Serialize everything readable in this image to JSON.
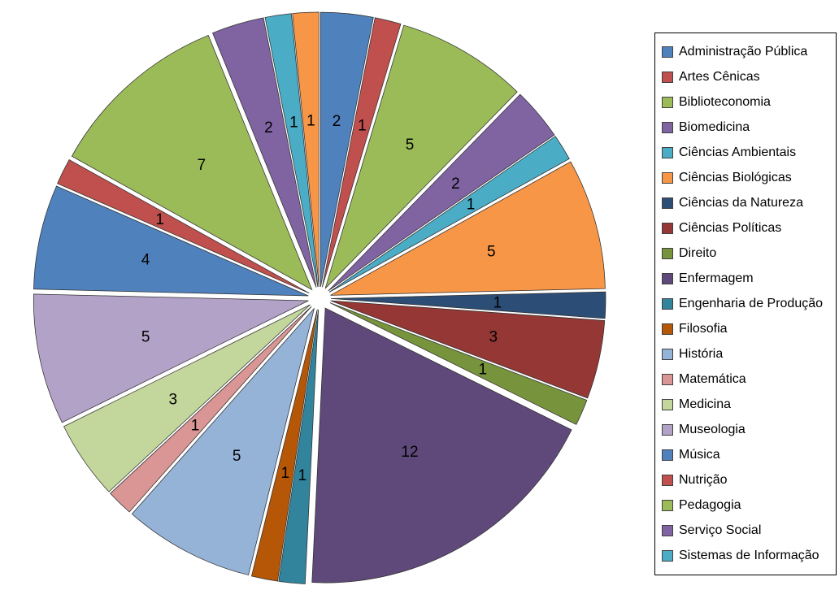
{
  "chart_data": {
    "type": "pie",
    "variant": "exploded",
    "title": "",
    "legend_position": "right",
    "start_angle_deg": 0,
    "direction": "clockwise",
    "total": 65,
    "label_style": "value-inside-slice",
    "slices": [
      {
        "label": "Administração Pública",
        "value": 2,
        "color": "#4F81BD",
        "in_legend": true
      },
      {
        "label": "Artes Cênicas",
        "value": 1,
        "color": "#C0504D",
        "in_legend": true
      },
      {
        "label": "Biblioteconomia",
        "value": 5,
        "color": "#9BBB59",
        "in_legend": true
      },
      {
        "label": "Biomedicina",
        "value": 2,
        "color": "#8064A2",
        "in_legend": true
      },
      {
        "label": "Ciências Ambientais",
        "value": 1,
        "color": "#4BACC6",
        "in_legend": true
      },
      {
        "label": "Ciências Biológicas",
        "value": 5,
        "color": "#F79646",
        "in_legend": true
      },
      {
        "label": "Ciências da Natureza",
        "value": 1,
        "color": "#2C4D75",
        "in_legend": true
      },
      {
        "label": "Ciências Políticas",
        "value": 3,
        "color": "#943735",
        "in_legend": true
      },
      {
        "label": "Direito",
        "value": 1,
        "color": "#77933C",
        "in_legend": true
      },
      {
        "label": "Enfermagem",
        "value": 12,
        "color": "#5F497A",
        "in_legend": true
      },
      {
        "label": "Engenharia de Produção",
        "value": 1,
        "color": "#31849B",
        "in_legend": true
      },
      {
        "label": "Filosofia",
        "value": 1,
        "color": "#B65708",
        "in_legend": true
      },
      {
        "label": "História",
        "value": 5,
        "color": "#95B3D7",
        "in_legend": true
      },
      {
        "label": "Matemática",
        "value": 1,
        "color": "#D99694",
        "in_legend": true
      },
      {
        "label": "Medicina",
        "value": 3,
        "color": "#C3D69B",
        "in_legend": true
      },
      {
        "label": "Museologia",
        "value": 5,
        "color": "#B3A2C7",
        "in_legend": true
      },
      {
        "label": "Música",
        "value": 4,
        "color": "#4F81BD",
        "in_legend": true
      },
      {
        "label": "Nutrição",
        "value": 1,
        "color": "#C0504D",
        "in_legend": true
      },
      {
        "label": "Pedagogia",
        "value": 7,
        "color": "#9BBB59",
        "in_legend": true
      },
      {
        "label": "Serviço Social",
        "value": 2,
        "color": "#8064A2",
        "in_legend": true
      },
      {
        "label": "Sistemas de Informação",
        "value": 1,
        "color": "#4BACC6",
        "in_legend": true
      },
      {
        "label": "",
        "value": 1,
        "color": "#F79646",
        "in_legend": false
      }
    ]
  },
  "legend": {
    "border_color": "#000000",
    "background": "#ffffff"
  }
}
